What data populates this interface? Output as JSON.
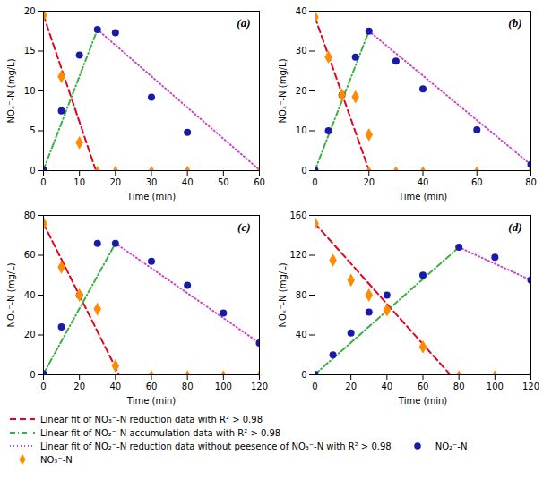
{
  "chart_data": [
    {
      "type": "line",
      "title": "(a)",
      "xlabel": "Time (min)",
      "ylabel": "NOₓ⁻-N (mg/L)",
      "xlim": [
        0,
        60
      ],
      "ylim": [
        0,
        20
      ],
      "xticks": [
        0,
        10,
        20,
        30,
        40,
        50,
        60
      ],
      "yticks": [
        0,
        5,
        10,
        15,
        20
      ],
      "legend": "bottom",
      "series": [
        {
          "name": "Linear fit of NO₃⁻-N reduction data with R² > 0.98",
          "type": "line",
          "line_style": "dashed",
          "color": "#e8001c",
          "x": [
            0,
            14.5
          ],
          "values": [
            19.5,
            0.1
          ]
        },
        {
          "name": "Linear fit of NO₂⁻-N accumulation data with R² > 0.98",
          "type": "line",
          "line_style": "dashdot",
          "color": "#3cb043",
          "x": [
            0,
            15
          ],
          "values": [
            0.1,
            17.7
          ]
        },
        {
          "name": "Linear fit of NO₂⁻-N reduction data without peesence of NO₃⁻-N with R² > 0.98",
          "type": "line",
          "line_style": "dotted",
          "color": "#cc44cc",
          "x": [
            15,
            60
          ],
          "values": [
            17.7,
            0.1
          ]
        },
        {
          "name": "NO₂⁻-N",
          "type": "scatter",
          "marker": "circle",
          "color": "#1a1aaa",
          "x": [
            0,
            5,
            10,
            15,
            20,
            30,
            40
          ],
          "values": [
            0.1,
            7.5,
            14.5,
            17.7,
            17.3,
            9.2,
            4.8
          ]
        },
        {
          "name": "NO₃⁻-N",
          "type": "scatter",
          "marker": "diamond",
          "color": "#ff8c00",
          "x": [
            0,
            5,
            10
          ],
          "values": [
            19.5,
            11.8,
            3.5
          ]
        },
        {
          "type": "scatter",
          "marker": "triangle",
          "color": "#ff8c00",
          "x": [
            15,
            20,
            30,
            40,
            60
          ],
          "values": [
            0.1,
            0.1,
            0.1,
            0.1,
            0.1
          ]
        }
      ]
    },
    {
      "type": "line",
      "title": "(b)",
      "xlabel": "Time (min)",
      "ylabel": "NOₓ⁻-N (mg/L)",
      "xlim": [
        0,
        80
      ],
      "ylim": [
        0,
        40
      ],
      "xticks": [
        0,
        20,
        40,
        60,
        80
      ],
      "yticks": [
        0,
        10,
        20,
        30,
        40
      ],
      "legend": "bottom",
      "series": [
        {
          "name": "Linear fit of NO₃⁻-N reduction data with R² > 0.98",
          "type": "line",
          "line_style": "dashed",
          "color": "#e8001c",
          "x": [
            0,
            20
          ],
          "values": [
            38.5,
            0.1
          ]
        },
        {
          "name": "Linear fit of NO₂⁻-N accumulation data with R² > 0.98",
          "type": "line",
          "line_style": "dashdot",
          "color": "#3cb043",
          "x": [
            0,
            20
          ],
          "values": [
            0.1,
            35.0
          ]
        },
        {
          "name": "Linear fit of NO₂⁻-N reduction data without peesence of NO₃⁻-N with R² > 0.98",
          "type": "line",
          "line_style": "dotted",
          "color": "#cc44cc",
          "x": [
            20,
            80
          ],
          "values": [
            35.0,
            1.5
          ]
        },
        {
          "name": "NO₂⁻-N",
          "type": "scatter",
          "marker": "circle",
          "color": "#1a1aaa",
          "x": [
            0,
            5,
            10,
            15,
            20,
            30,
            40,
            60,
            80
          ],
          "values": [
            0.1,
            10.0,
            19.0,
            28.5,
            35.0,
            27.5,
            20.5,
            10.2,
            1.5
          ]
        },
        {
          "name": "NO₃⁻-N",
          "type": "scatter",
          "marker": "diamond",
          "color": "#ff8c00",
          "x": [
            0,
            5,
            10,
            15,
            20
          ],
          "values": [
            38.5,
            28.5,
            19.0,
            18.5,
            9.0
          ]
        },
        {
          "type": "scatter",
          "marker": "triangle",
          "color": "#ff8c00",
          "x": [
            20,
            30,
            40,
            60,
            80
          ],
          "values": [
            0.1,
            0.1,
            0.1,
            0.1,
            0.1
          ]
        }
      ]
    },
    {
      "type": "line",
      "title": "(c)",
      "xlabel": "Time (min)",
      "ylabel": "NOₓ⁻-N (mg/L)",
      "xlim": [
        0,
        120
      ],
      "ylim": [
        0,
        80
      ],
      "xticks": [
        0,
        20,
        40,
        60,
        80,
        100,
        120
      ],
      "yticks": [
        0,
        20,
        40,
        60,
        80
      ],
      "legend": "bottom",
      "series": [
        {
          "name": "Linear fit of NO₃⁻-N reduction data with R² > 0.98",
          "type": "line",
          "line_style": "dashed",
          "color": "#e8001c",
          "x": [
            0,
            42
          ],
          "values": [
            76,
            0.1
          ]
        },
        {
          "name": "Linear fit of NO₂⁻-N accumulation data with R² > 0.98",
          "type": "line",
          "line_style": "dashdot",
          "color": "#3cb043",
          "x": [
            0,
            40
          ],
          "values": [
            0.5,
            66
          ]
        },
        {
          "name": "Linear fit of NO₂⁻-N reduction data without peesence of NO₃⁻-N with R² > 0.98",
          "type": "line",
          "line_style": "dotted",
          "color": "#cc44cc",
          "x": [
            40,
            120
          ],
          "values": [
            66,
            16
          ]
        },
        {
          "name": "NO₂⁻-N",
          "type": "scatter",
          "marker": "circle",
          "color": "#1a1aaa",
          "x": [
            0,
            10,
            20,
            30,
            40,
            60,
            80,
            100,
            120
          ],
          "values": [
            0.5,
            24,
            40,
            66,
            66,
            57,
            45,
            31,
            16
          ]
        },
        {
          "name": "NO₃⁻-N",
          "type": "scatter",
          "marker": "diamond",
          "color": "#ff8c00",
          "x": [
            0,
            10,
            20,
            30,
            40
          ],
          "values": [
            76,
            54,
            40,
            33,
            4.5
          ]
        },
        {
          "type": "scatter",
          "marker": "triangle",
          "color": "#ff8c00",
          "x": [
            60,
            80,
            100,
            120
          ],
          "values": [
            0.3,
            0.3,
            0.3,
            0.3
          ]
        }
      ]
    },
    {
      "type": "line",
      "title": "(d)",
      "xlabel": "Time (min)",
      "ylabel": "NOₓ⁻-N (mg/L)",
      "xlim": [
        0,
        120
      ],
      "ylim": [
        0,
        160
      ],
      "xticks": [
        0,
        20,
        40,
        60,
        80,
        100,
        120
      ],
      "yticks": [
        0,
        40,
        80,
        120,
        160
      ],
      "legend": "bottom",
      "series": [
        {
          "name": "Linear fit of NO₃⁻-N reduction data with R² > 0.98",
          "type": "line",
          "line_style": "dashed",
          "color": "#e8001c",
          "x": [
            0,
            75
          ],
          "values": [
            152,
            0.5
          ]
        },
        {
          "name": "Linear fit of NO₂⁻-N accumulation data with R² > 0.98",
          "type": "line",
          "line_style": "dashdot",
          "color": "#3cb043",
          "x": [
            0,
            80
          ],
          "values": [
            0.5,
            128
          ]
        },
        {
          "name": "Linear fit of NO₂⁻-N reduction data without peesence of NO₃⁻-N with R² > 0.98",
          "type": "line",
          "line_style": "dotted",
          "color": "#cc44cc",
          "x": [
            80,
            120
          ],
          "values": [
            128,
            95
          ]
        },
        {
          "name": "NO₂⁻-N",
          "type": "scatter",
          "marker": "circle",
          "color": "#1a1aaa",
          "x": [
            0,
            10,
            20,
            30,
            40,
            60,
            80,
            100,
            120
          ],
          "values": [
            0.5,
            20,
            42,
            63,
            80,
            100,
            128,
            118,
            95
          ]
        },
        {
          "name": "NO₃⁻-N",
          "type": "scatter",
          "marker": "diamond",
          "color": "#ff8c00",
          "x": [
            0,
            10,
            20,
            30,
            40,
            60
          ],
          "values": [
            152,
            115,
            95,
            80,
            65,
            28
          ]
        },
        {
          "type": "scatter",
          "marker": "triangle",
          "color": "#ff8c00",
          "x": [
            80,
            100,
            120
          ],
          "values": [
            0.5,
            0.5,
            0.5
          ]
        }
      ]
    }
  ]
}
